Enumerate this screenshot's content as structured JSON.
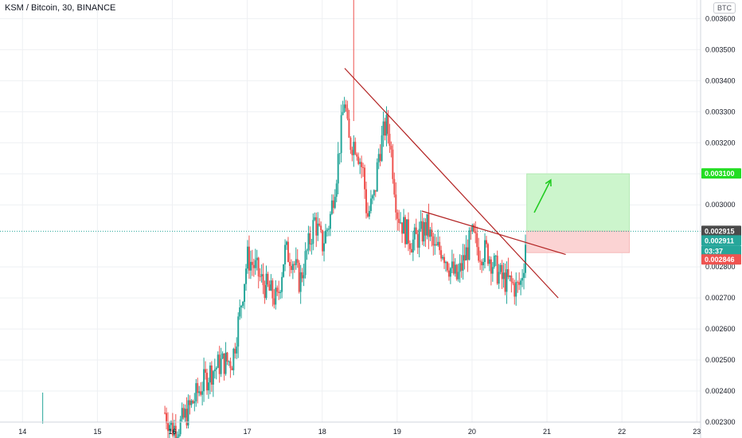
{
  "header": {
    "symbol_title": "KSM / Bitcoin, 30, BINANCE",
    "currency_badge": "BTC"
  },
  "colors": {
    "up": "#26a69a",
    "down": "#ef5350",
    "trendline": "#b22222",
    "target_zone": "#ccf5cc",
    "stop_zone": "#fbd3d3",
    "arrow": "#22cc22",
    "grid": "#eef0f3",
    "current_price_line": "#26a69a"
  },
  "price_tags": {
    "target": "0.003100",
    "current": "0.002915",
    "last": "0.002911",
    "countdown": "03:37",
    "stop": "0.002846"
  },
  "chart_data": {
    "type": "candlestick",
    "title": "KSM / Bitcoin, 30, BINANCE",
    "x_ticks": [
      "14",
      "15",
      "16",
      "17",
      "18",
      "19",
      "20",
      "21",
      "22",
      "23"
    ],
    "y_ticks": [
      "0.002300",
      "0.002400",
      "0.002500",
      "0.002600",
      "0.002700",
      "0.002800",
      "0.003000",
      "0.003100",
      "0.003200",
      "0.003300",
      "0.003400",
      "0.003500",
      "0.003600"
    ],
    "ylim": [
      0.0023,
      0.00366
    ],
    "xlim": [
      13.7,
      23.05
    ],
    "grid": true,
    "close_path": [
      [
        15.9,
        0.00233
      ],
      [
        16.0,
        0.00228
      ],
      [
        16.1,
        0.00229
      ],
      [
        16.2,
        0.00233
      ],
      [
        16.35,
        0.0024
      ],
      [
        16.5,
        0.00246
      ],
      [
        16.65,
        0.00249
      ],
      [
        16.8,
        0.0025
      ],
      [
        16.9,
        0.00265
      ],
      [
        17.0,
        0.00283
      ],
      [
        17.1,
        0.0028
      ],
      [
        17.2,
        0.00275
      ],
      [
        17.3,
        0.00272
      ],
      [
        17.4,
        0.00269
      ],
      [
        17.5,
        0.00285
      ],
      [
        17.6,
        0.00283
      ],
      [
        17.7,
        0.00275
      ],
      [
        17.8,
        0.00285
      ],
      [
        17.9,
        0.00295
      ],
      [
        18.0,
        0.00287
      ],
      [
        18.1,
        0.00295
      ],
      [
        18.2,
        0.00312
      ],
      [
        18.3,
        0.00335
      ],
      [
        18.35,
        0.0032
      ],
      [
        18.45,
        0.0032
      ],
      [
        18.55,
        0.0031
      ],
      [
        18.6,
        0.00296
      ],
      [
        18.7,
        0.00303
      ],
      [
        18.75,
        0.00316
      ],
      [
        18.85,
        0.00326
      ],
      [
        18.9,
        0.00322
      ],
      [
        18.95,
        0.0031
      ],
      [
        19.0,
        0.00298
      ],
      [
        19.1,
        0.00292
      ],
      [
        19.2,
        0.00288
      ],
      [
        19.3,
        0.0029
      ],
      [
        19.4,
        0.00293
      ],
      [
        19.5,
        0.00285
      ],
      [
        19.6,
        0.00286
      ],
      [
        19.7,
        0.0028
      ],
      [
        19.8,
        0.00276
      ],
      [
        19.9,
        0.00283
      ],
      [
        20.0,
        0.0029
      ],
      [
        20.1,
        0.00285
      ],
      [
        20.2,
        0.00285
      ],
      [
        20.3,
        0.0028
      ],
      [
        20.4,
        0.00276
      ],
      [
        20.5,
        0.00275
      ],
      [
        20.6,
        0.00273
      ],
      [
        20.65,
        0.00275
      ],
      [
        20.7,
        0.00283
      ],
      [
        20.72,
        0.00291
      ]
    ],
    "spikes": [
      {
        "x": 14.27,
        "low": 0.002295,
        "high": 0.002395
      },
      {
        "x": 18.42,
        "low": 0.00327,
        "high": 0.00368
      }
    ],
    "trendlines": [
      {
        "from": [
          18.3,
          0.00344
        ],
        "to": [
          21.15,
          0.0027
        ]
      },
      {
        "from": [
          19.33,
          0.00298
        ],
        "to": [
          21.25,
          0.00284
        ]
      }
    ],
    "position": {
      "x_start": 20.73,
      "x_end": 22.1,
      "entry": 0.002915,
      "target": 0.0031,
      "stop": 0.002846
    },
    "arrow": {
      "from": [
        20.83,
        0.002975
      ],
      "to": [
        21.05,
        0.00308
      ]
    }
  }
}
